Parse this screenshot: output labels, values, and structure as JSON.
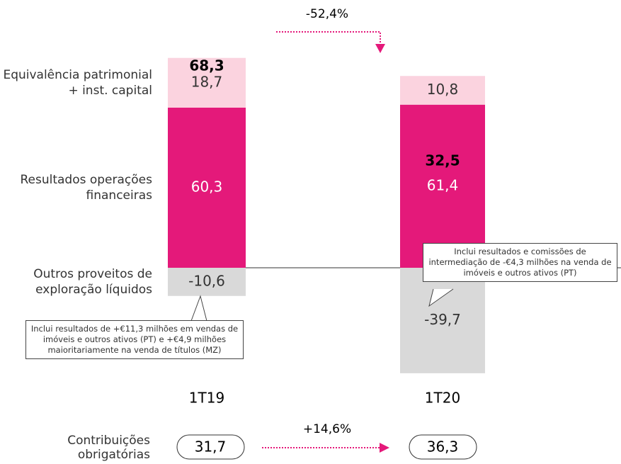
{
  "chart_data": {
    "type": "stacked_bar",
    "categories": [
      "1T19",
      "1T20"
    ],
    "series": [
      {
        "name": "Resultados operações financeiras",
        "color": "#e4197a",
        "text_color": "#ffffff",
        "values": [
          60.3,
          61.4
        ],
        "value_labels": [
          "60,3",
          "61,4"
        ]
      },
      {
        "name": "Equivalência patrimonial + inst. capital",
        "color": "#fbd3df",
        "text_color": "#333333",
        "values": [
          18.7,
          10.8
        ],
        "value_labels": [
          "18,7",
          "10,8"
        ]
      },
      {
        "name": "Outros proveitos de exploração líquidos",
        "color": "#d9d9d9",
        "text_color": "#333333",
        "values": [
          -10.6,
          -39.7
        ],
        "value_labels": [
          "-10,6",
          "-39,7"
        ]
      }
    ],
    "totals": {
      "values": [
        68.3,
        32.5
      ],
      "value_labels": [
        "68,3",
        "32,5"
      ]
    },
    "change_label": "-52,4%",
    "annotations": [
      "Inclui resultados de +€11,3 milhões em vendas de imóveis e outros ativos (PT) e +€4,9 milhões maioritariamente na venda de títulos (MZ)",
      "Inclui resultados e comissões de intermediação de -€4,3 milhões na venda de imóveis e outros ativos (PT)"
    ],
    "contributions": {
      "name": "Contribuições obrigatórias",
      "values": [
        31.7,
        36.3
      ],
      "value_labels": [
        "31,7",
        "36,3"
      ],
      "change_label": "+14,6%"
    }
  }
}
